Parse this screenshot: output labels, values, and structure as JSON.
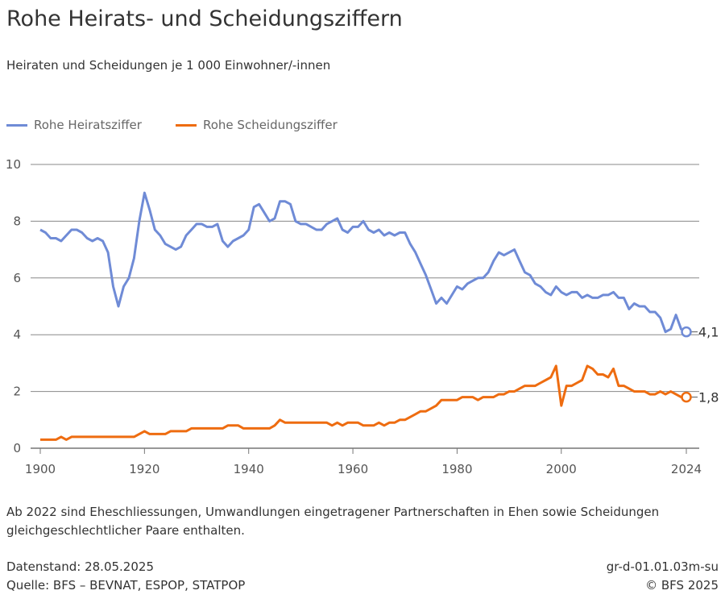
{
  "title": "Rohe Heirats- und Scheidungsziffern",
  "subtitle": "Heiraten und Scheidungen je 1 000 Einwohner/-innen",
  "note": "Ab 2022 sind Eheschliessungen, Umwandlungen eingetragener Partnerschaften in Ehen sowie Scheidungen gleichgeschlechtlicher Paare enthalten.",
  "footer": {
    "date": "Datenstand: 28.05.2025",
    "source": "Quelle: BFS – BEVNAT, ESPOP, STATPOP",
    "code": "gr-d-01.01.03m-su",
    "copyright": "© BFS 2025"
  },
  "chart_data": {
    "type": "line",
    "xlim": [
      1900,
      2024
    ],
    "ylim": [
      0,
      10
    ],
    "grid": true,
    "legend_position": "top-left",
    "x_ticks": [
      "1900",
      "1920",
      "1940",
      "1960",
      "1980",
      "2000",
      "2024"
    ],
    "x_tick_values": [
      1900,
      1920,
      1940,
      1960,
      1980,
      2000,
      2024
    ],
    "y_ticks": [
      "0",
      "2",
      "4",
      "6",
      "8",
      "10"
    ],
    "y_tick_values": [
      0,
      2,
      4,
      6,
      8,
      10
    ],
    "x": [
      1900,
      1901,
      1902,
      1903,
      1904,
      1905,
      1906,
      1907,
      1908,
      1909,
      1910,
      1911,
      1912,
      1913,
      1914,
      1915,
      1916,
      1917,
      1918,
      1919,
      1920,
      1921,
      1922,
      1923,
      1924,
      1925,
      1926,
      1927,
      1928,
      1929,
      1930,
      1931,
      1932,
      1933,
      1934,
      1935,
      1936,
      1937,
      1938,
      1939,
      1940,
      1941,
      1942,
      1943,
      1944,
      1945,
      1946,
      1947,
      1948,
      1949,
      1950,
      1951,
      1952,
      1953,
      1954,
      1955,
      1956,
      1957,
      1958,
      1959,
      1960,
      1961,
      1962,
      1963,
      1964,
      1965,
      1966,
      1967,
      1968,
      1969,
      1970,
      1971,
      1972,
      1973,
      1974,
      1975,
      1976,
      1977,
      1978,
      1979,
      1980,
      1981,
      1982,
      1983,
      1984,
      1985,
      1986,
      1987,
      1988,
      1989,
      1990,
      1991,
      1992,
      1993,
      1994,
      1995,
      1996,
      1997,
      1998,
      1999,
      2000,
      2001,
      2002,
      2003,
      2004,
      2005,
      2006,
      2007,
      2008,
      2009,
      2010,
      2011,
      2012,
      2013,
      2014,
      2015,
      2016,
      2017,
      2018,
      2019,
      2020,
      2021,
      2022,
      2023,
      2024
    ],
    "series": [
      {
        "name": "Rohe Heiratsziffer",
        "color": "#6f8bd6",
        "end_label": "4,1",
        "values": [
          7.7,
          7.6,
          7.4,
          7.4,
          7.3,
          7.5,
          7.7,
          7.7,
          7.6,
          7.4,
          7.3,
          7.4,
          7.3,
          6.9,
          5.7,
          5.0,
          5.7,
          6.0,
          6.7,
          8.0,
          9.0,
          8.4,
          7.7,
          7.5,
          7.2,
          7.1,
          7.0,
          7.1,
          7.5,
          7.7,
          7.9,
          7.9,
          7.8,
          7.8,
          7.9,
          7.3,
          7.1,
          7.3,
          7.4,
          7.5,
          7.7,
          8.5,
          8.6,
          8.3,
          8.0,
          8.1,
          8.7,
          8.7,
          8.6,
          8.0,
          7.9,
          7.9,
          7.8,
          7.7,
          7.7,
          7.9,
          8.0,
          8.1,
          7.7,
          7.6,
          7.8,
          7.8,
          8.0,
          7.7,
          7.6,
          7.7,
          7.5,
          7.6,
          7.5,
          7.6,
          7.6,
          7.2,
          6.9,
          6.5,
          6.1,
          5.6,
          5.1,
          5.3,
          5.1,
          5.4,
          5.7,
          5.6,
          5.8,
          5.9,
          6.0,
          6.0,
          6.2,
          6.6,
          6.9,
          6.8,
          6.9,
          7.0,
          6.6,
          6.2,
          6.1,
          5.8,
          5.7,
          5.5,
          5.4,
          5.7,
          5.5,
          5.4,
          5.5,
          5.5,
          5.3,
          5.4,
          5.3,
          5.3,
          5.4,
          5.4,
          5.5,
          5.3,
          5.3,
          4.9,
          5.1,
          5.0,
          5.0,
          4.8,
          4.8,
          4.6,
          4.1,
          4.2,
          4.7,
          4.2,
          4.1
        ]
      },
      {
        "name": "Rohe Scheidungsziffer",
        "color": "#ee6c10",
        "end_label": "1,8",
        "values": [
          0.3,
          0.3,
          0.3,
          0.3,
          0.4,
          0.3,
          0.4,
          0.4,
          0.4,
          0.4,
          0.4,
          0.4,
          0.4,
          0.4,
          0.4,
          0.4,
          0.4,
          0.4,
          0.4,
          0.5,
          0.6,
          0.5,
          0.5,
          0.5,
          0.5,
          0.6,
          0.6,
          0.6,
          0.6,
          0.7,
          0.7,
          0.7,
          0.7,
          0.7,
          0.7,
          0.7,
          0.8,
          0.8,
          0.8,
          0.7,
          0.7,
          0.7,
          0.7,
          0.7,
          0.7,
          0.8,
          1.0,
          0.9,
          0.9,
          0.9,
          0.9,
          0.9,
          0.9,
          0.9,
          0.9,
          0.9,
          0.8,
          0.9,
          0.8,
          0.9,
          0.9,
          0.9,
          0.8,
          0.8,
          0.8,
          0.9,
          0.8,
          0.9,
          0.9,
          1.0,
          1.0,
          1.1,
          1.2,
          1.3,
          1.3,
          1.4,
          1.5,
          1.7,
          1.7,
          1.7,
          1.7,
          1.8,
          1.8,
          1.8,
          1.7,
          1.8,
          1.8,
          1.8,
          1.9,
          1.9,
          2.0,
          2.0,
          2.1,
          2.2,
          2.2,
          2.2,
          2.3,
          2.4,
          2.5,
          2.9,
          1.5,
          2.2,
          2.2,
          2.3,
          2.4,
          2.9,
          2.8,
          2.6,
          2.6,
          2.5,
          2.8,
          2.2,
          2.2,
          2.1,
          2.0,
          2.0,
          2.0,
          1.9,
          1.9,
          2.0,
          1.9,
          2.0,
          1.9,
          1.8,
          1.8
        ]
      }
    ]
  }
}
